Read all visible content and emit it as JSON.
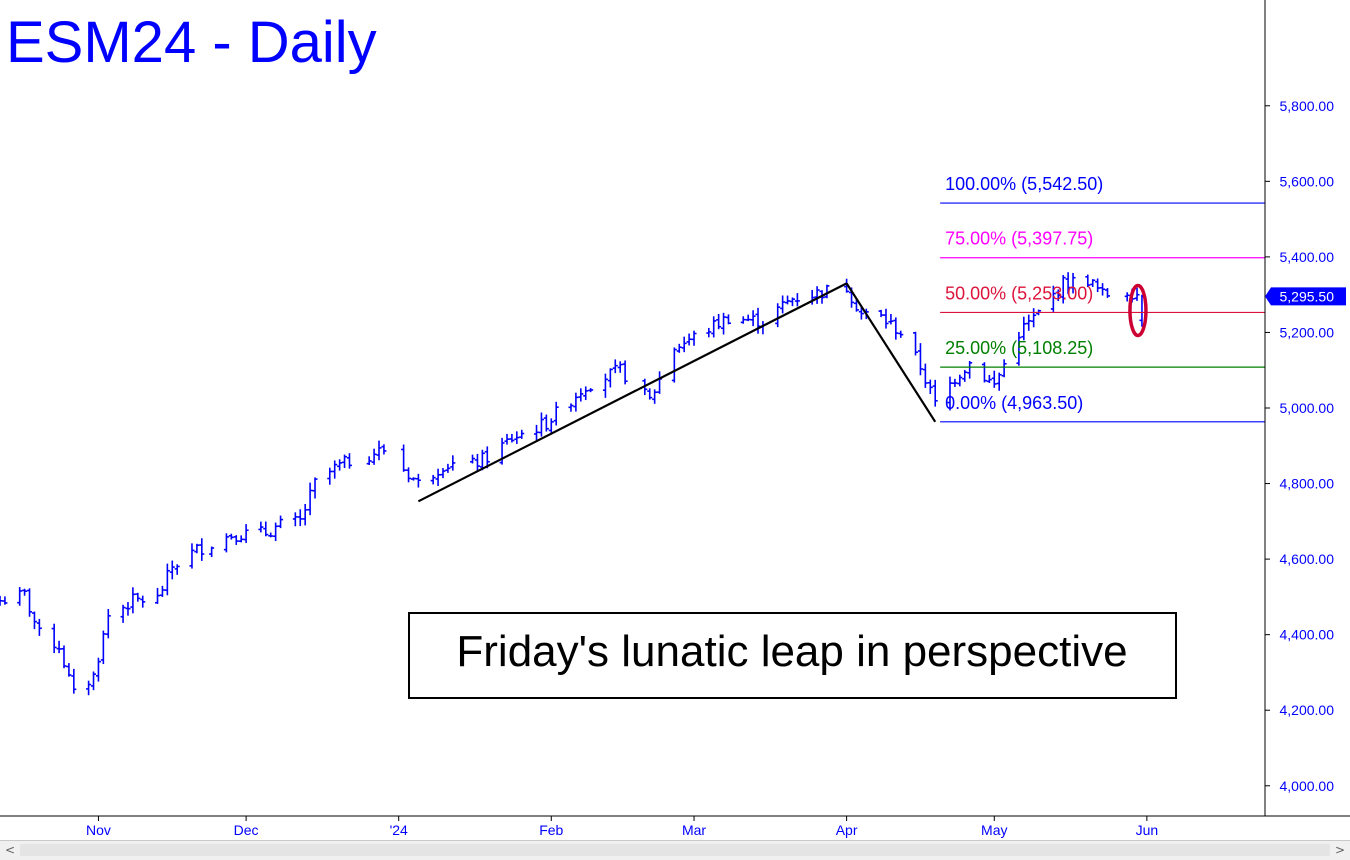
{
  "title": "ESM24 - Daily",
  "annotation": "Friday's lunatic leap in perspective",
  "chart_data": {
    "type": "ohlc",
    "title": "ESM24 - Daily",
    "ylim": [
      3920,
      6080
    ],
    "y_ticks": [
      4000,
      4200,
      4400,
      4600,
      4800,
      5000,
      5200,
      5400,
      5600,
      5800
    ],
    "y_tick_labels": [
      "4,000.00",
      "4,200.00",
      "4,400.00",
      "4,600.00",
      "4,800.00",
      "5,000.00",
      "5,200.00",
      "5,400.00",
      "5,600.00",
      "5,800.00"
    ],
    "x_range": [
      "2023-10-12",
      "2024-06-25"
    ],
    "x_ticks": [
      {
        "date": "2023-11-01",
        "label": "Nov"
      },
      {
        "date": "2023-12-01",
        "label": "Dec"
      },
      {
        "date": "2024-01-01",
        "label": "'24"
      },
      {
        "date": "2024-02-01",
        "label": "Feb"
      },
      {
        "date": "2024-03-01",
        "label": "Mar"
      },
      {
        "date": "2024-04-01",
        "label": "Apr"
      },
      {
        "date": "2024-05-01",
        "label": "May"
      },
      {
        "date": "2024-06-01",
        "label": "Jun"
      }
    ],
    "last_price": 5295.5,
    "last_price_label": "5,295.50",
    "anchors": [
      [
        "2023-10-12",
        4490
      ],
      [
        "2023-10-17",
        4505
      ],
      [
        "2023-10-20",
        4400
      ],
      [
        "2023-10-24",
        4370
      ],
      [
        "2023-10-27",
        4240
      ],
      [
        "2023-10-31",
        4290
      ],
      [
        "2023-11-03",
        4450
      ],
      [
        "2023-11-08",
        4490
      ],
      [
        "2023-11-13",
        4495
      ],
      [
        "2023-11-16",
        4580
      ],
      [
        "2023-11-21",
        4625
      ],
      [
        "2023-11-28",
        4665
      ],
      [
        "2023-12-05",
        4670
      ],
      [
        "2023-12-08",
        4690
      ],
      [
        "2023-12-12",
        4700
      ],
      [
        "2023-12-15",
        4800
      ],
      [
        "2023-12-19",
        4840
      ],
      [
        "2023-12-22",
        4860
      ],
      [
        "2023-12-29",
        4890
      ],
      [
        "2024-01-05",
        4800
      ],
      [
        "2024-01-10",
        4850
      ],
      [
        "2024-01-16",
        4850
      ],
      [
        "2024-01-19",
        4870
      ],
      [
        "2024-01-24",
        4920
      ],
      [
        "2024-01-31",
        4960
      ],
      [
        "2024-02-08",
        5060
      ],
      [
        "2024-02-15",
        5100
      ],
      [
        "2024-02-21",
        5020
      ],
      [
        "2024-02-26",
        5160
      ],
      [
        "2024-03-04",
        5210
      ],
      [
        "2024-03-08",
        5240
      ],
      [
        "2024-03-15",
        5230
      ],
      [
        "2024-03-21",
        5290
      ],
      [
        "2024-03-28",
        5310
      ],
      [
        "2024-04-01",
        5320
      ],
      [
        "2024-04-04",
        5250
      ],
      [
        "2024-04-08",
        5240
      ],
      [
        "2024-04-12",
        5200
      ],
      [
        "2024-04-16",
        5110
      ],
      [
        "2024-04-19",
        5010
      ],
      [
        "2024-04-23",
        5080
      ],
      [
        "2024-04-26",
        5120
      ],
      [
        "2024-05-01",
        5060
      ],
      [
        "2024-05-06",
        5200
      ],
      [
        "2024-05-10",
        5250
      ],
      [
        "2024-05-15",
        5330
      ],
      [
        "2024-05-20",
        5340
      ],
      [
        "2024-05-23",
        5300
      ],
      [
        "2024-05-28",
        5310
      ],
      [
        "2024-05-31",
        5300
      ]
    ],
    "friday_bar": {
      "date": "2024-05-31",
      "open": 5232,
      "high": 5300,
      "low": 5215,
      "close": 5295.5
    },
    "trendlines": [
      {
        "from": [
          "2024-01-05",
          4753
        ],
        "to": [
          "2024-04-01",
          5330
        ]
      },
      {
        "from": [
          "2024-04-01",
          5330
        ],
        "to": [
          "2024-04-19",
          4963.5
        ]
      }
    ],
    "levels": [
      {
        "label": "100.00% (5,542.50)",
        "value": 5542.5,
        "color": "#0000ff"
      },
      {
        "label": "75.00% (5,397.75)",
        "value": 5397.75,
        "color": "#ff00ff"
      },
      {
        "label": "50.00% (5,253.00)",
        "value": 5253.0,
        "color": "#dc143c"
      },
      {
        "label": "25.00% (5,108.25)",
        "value": 5108.25,
        "color": "#008000"
      },
      {
        "label": "0.00% (4,963.50)",
        "value": 4963.5,
        "color": "#0000ff"
      }
    ],
    "levels_start": "2024-04-20",
    "highlight_ellipse": {
      "date": "2024-05-31",
      "value": 5258
    },
    "grid": false
  },
  "scrollbar": {
    "left_arrow": "<",
    "right_arrow": ">"
  }
}
